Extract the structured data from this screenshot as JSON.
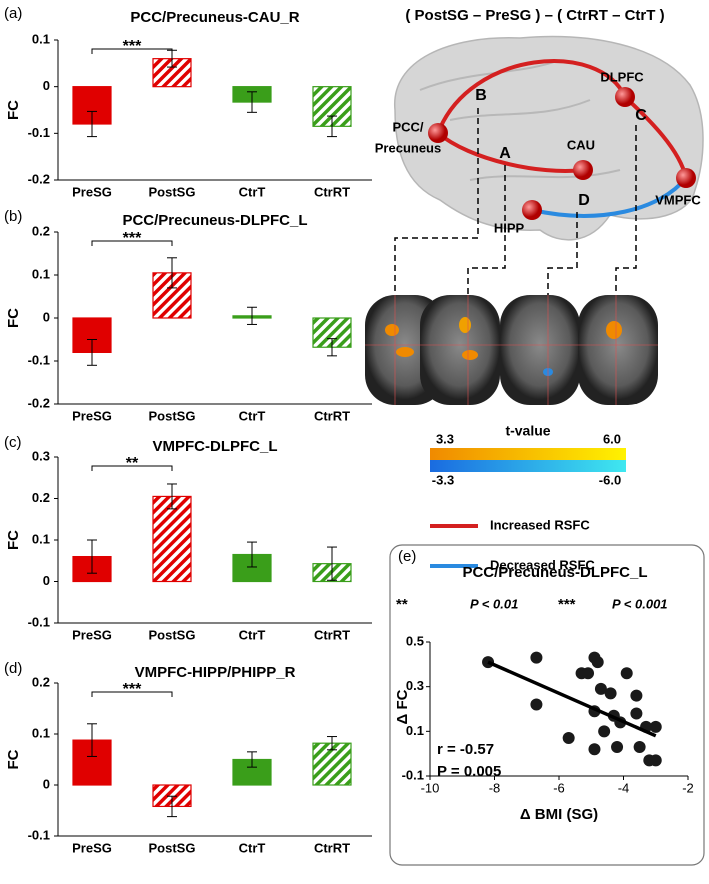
{
  "chart_data": [
    {
      "type": "bar",
      "panel_label": "(a)",
      "title": "PCC/Precuneus-CAU_R",
      "ylabel": "FC",
      "categories": [
        "PreSG",
        "PostSG",
        "CtrT",
        "CtrRT"
      ],
      "values": [
        -0.08,
        0.06,
        -0.033,
        -0.085
      ],
      "errors": [
        0.027,
        0.018,
        0.022,
        0.022
      ],
      "colors": [
        "#e00000",
        "#e00000",
        "#3a9e1a",
        "#3a9e1a"
      ],
      "hatched": [
        false,
        true,
        false,
        true
      ],
      "ylim": [
        -0.2,
        0.1
      ],
      "yticks": [
        -0.2,
        -0.1,
        0,
        0.1
      ],
      "significance": "***"
    },
    {
      "type": "bar",
      "panel_label": "(b)",
      "title": "PCC/Precuneus-DLPFC_L",
      "ylabel": "FC",
      "categories": [
        "PreSG",
        "PostSG",
        "CtrT",
        "CtrRT"
      ],
      "values": [
        -0.08,
        0.105,
        0.005,
        -0.068
      ],
      "errors": [
        0.03,
        0.035,
        0.02,
        0.02
      ],
      "colors": [
        "#e00000",
        "#e00000",
        "#3a9e1a",
        "#3a9e1a"
      ],
      "hatched": [
        false,
        true,
        false,
        true
      ],
      "ylim": [
        -0.2,
        0.2
      ],
      "yticks": [
        -0.2,
        -0.1,
        0,
        0.1,
        0.2
      ],
      "significance": "***"
    },
    {
      "type": "bar",
      "panel_label": "(c)",
      "title": "VMPFC-DLPFC_L",
      "ylabel": "FC",
      "categories": [
        "PreSG",
        "PostSG",
        "CtrT",
        "CtrRT"
      ],
      "values": [
        0.06,
        0.205,
        0.065,
        0.043
      ],
      "errors": [
        0.04,
        0.03,
        0.03,
        0.04
      ],
      "colors": [
        "#e00000",
        "#e00000",
        "#3a9e1a",
        "#3a9e1a"
      ],
      "hatched": [
        false,
        true,
        false,
        true
      ],
      "ylim": [
        -0.1,
        0.3
      ],
      "yticks": [
        -0.1,
        0,
        0.1,
        0.2,
        0.3
      ],
      "significance": "**"
    },
    {
      "type": "bar",
      "panel_label": "(d)",
      "title": "VMPFC-HIPP/PHIPP_R",
      "ylabel": "FC",
      "categories": [
        "PreSG",
        "PostSG",
        "CtrT",
        "CtrRT"
      ],
      "values": [
        0.088,
        -0.042,
        0.05,
        0.082
      ],
      "errors": [
        0.032,
        0.02,
        0.015,
        0.013
      ],
      "colors": [
        "#e00000",
        "#e00000",
        "#3a9e1a",
        "#3a9e1a"
      ],
      "hatched": [
        false,
        true,
        false,
        true
      ],
      "ylim": [
        -0.1,
        0.2
      ],
      "yticks": [
        -0.1,
        0,
        0.1,
        0.2
      ],
      "significance": "***"
    },
    {
      "type": "scatter",
      "panel_label": "(e)",
      "title": "PCC/Precuneus-DLPFC_L",
      "xlabel": "Δ BMI (SG)",
      "ylabel": "Δ FC",
      "x": [
        -8.2,
        -6.7,
        -6.7,
        -5.3,
        -5.1,
        -4.9,
        -4.8,
        -4.9,
        -4.7,
        -4.4,
        -3.9,
        -3.6,
        -4.3,
        -4.1,
        -3.6,
        -3.3,
        -5.7,
        -4.9,
        -4.2,
        -3.5,
        -3.2,
        -3.0,
        -4.6,
        -3.0
      ],
      "y": [
        0.41,
        0.43,
        0.22,
        0.36,
        0.36,
        0.43,
        0.41,
        0.19,
        0.29,
        0.27,
        0.36,
        0.26,
        0.17,
        0.14,
        0.18,
        0.12,
        0.07,
        0.02,
        0.03,
        0.03,
        -0.03,
        -0.03,
        0.1,
        0.12
      ],
      "color": "#1a1a1a",
      "fit": {
        "x": [
          -8.2,
          -3.0
        ],
        "y": [
          0.41,
          0.08
        ],
        "color": "#000000"
      },
      "annotations": [
        "r = -0.57",
        "P =  0.005"
      ],
      "xlim": [
        -10,
        -2
      ],
      "xticks": [
        -10,
        -8,
        -6,
        -4,
        -2
      ],
      "ylim": [
        -0.1,
        0.5
      ],
      "yticks": [
        -0.1,
        0.1,
        0.3,
        0.5
      ]
    }
  ],
  "brain_figure": {
    "title": "( PostSG – PreSG ) – ( CtrRT – CtrT )",
    "regions": [
      "PCC/",
      "Precuneus",
      "CAU",
      "DLPFC",
      "VMPFC",
      "HIPP"
    ],
    "connections": [
      "A",
      "B",
      "C",
      "D"
    ],
    "colorbar": {
      "title": "t-value",
      "positive": [
        "3.3",
        "6.0"
      ],
      "negative": [
        "-3.3",
        "-6.0"
      ]
    },
    "legend": [
      {
        "label": "Increased RSFC",
        "color": "#d42020"
      },
      {
        "label": "Decreased RSFC",
        "color": "#2a8ae0"
      }
    ],
    "significance_key": [
      {
        "stars": "**",
        "label": "P < 0.01"
      },
      {
        "stars": "***",
        "label": "P < 0.001"
      }
    ]
  }
}
